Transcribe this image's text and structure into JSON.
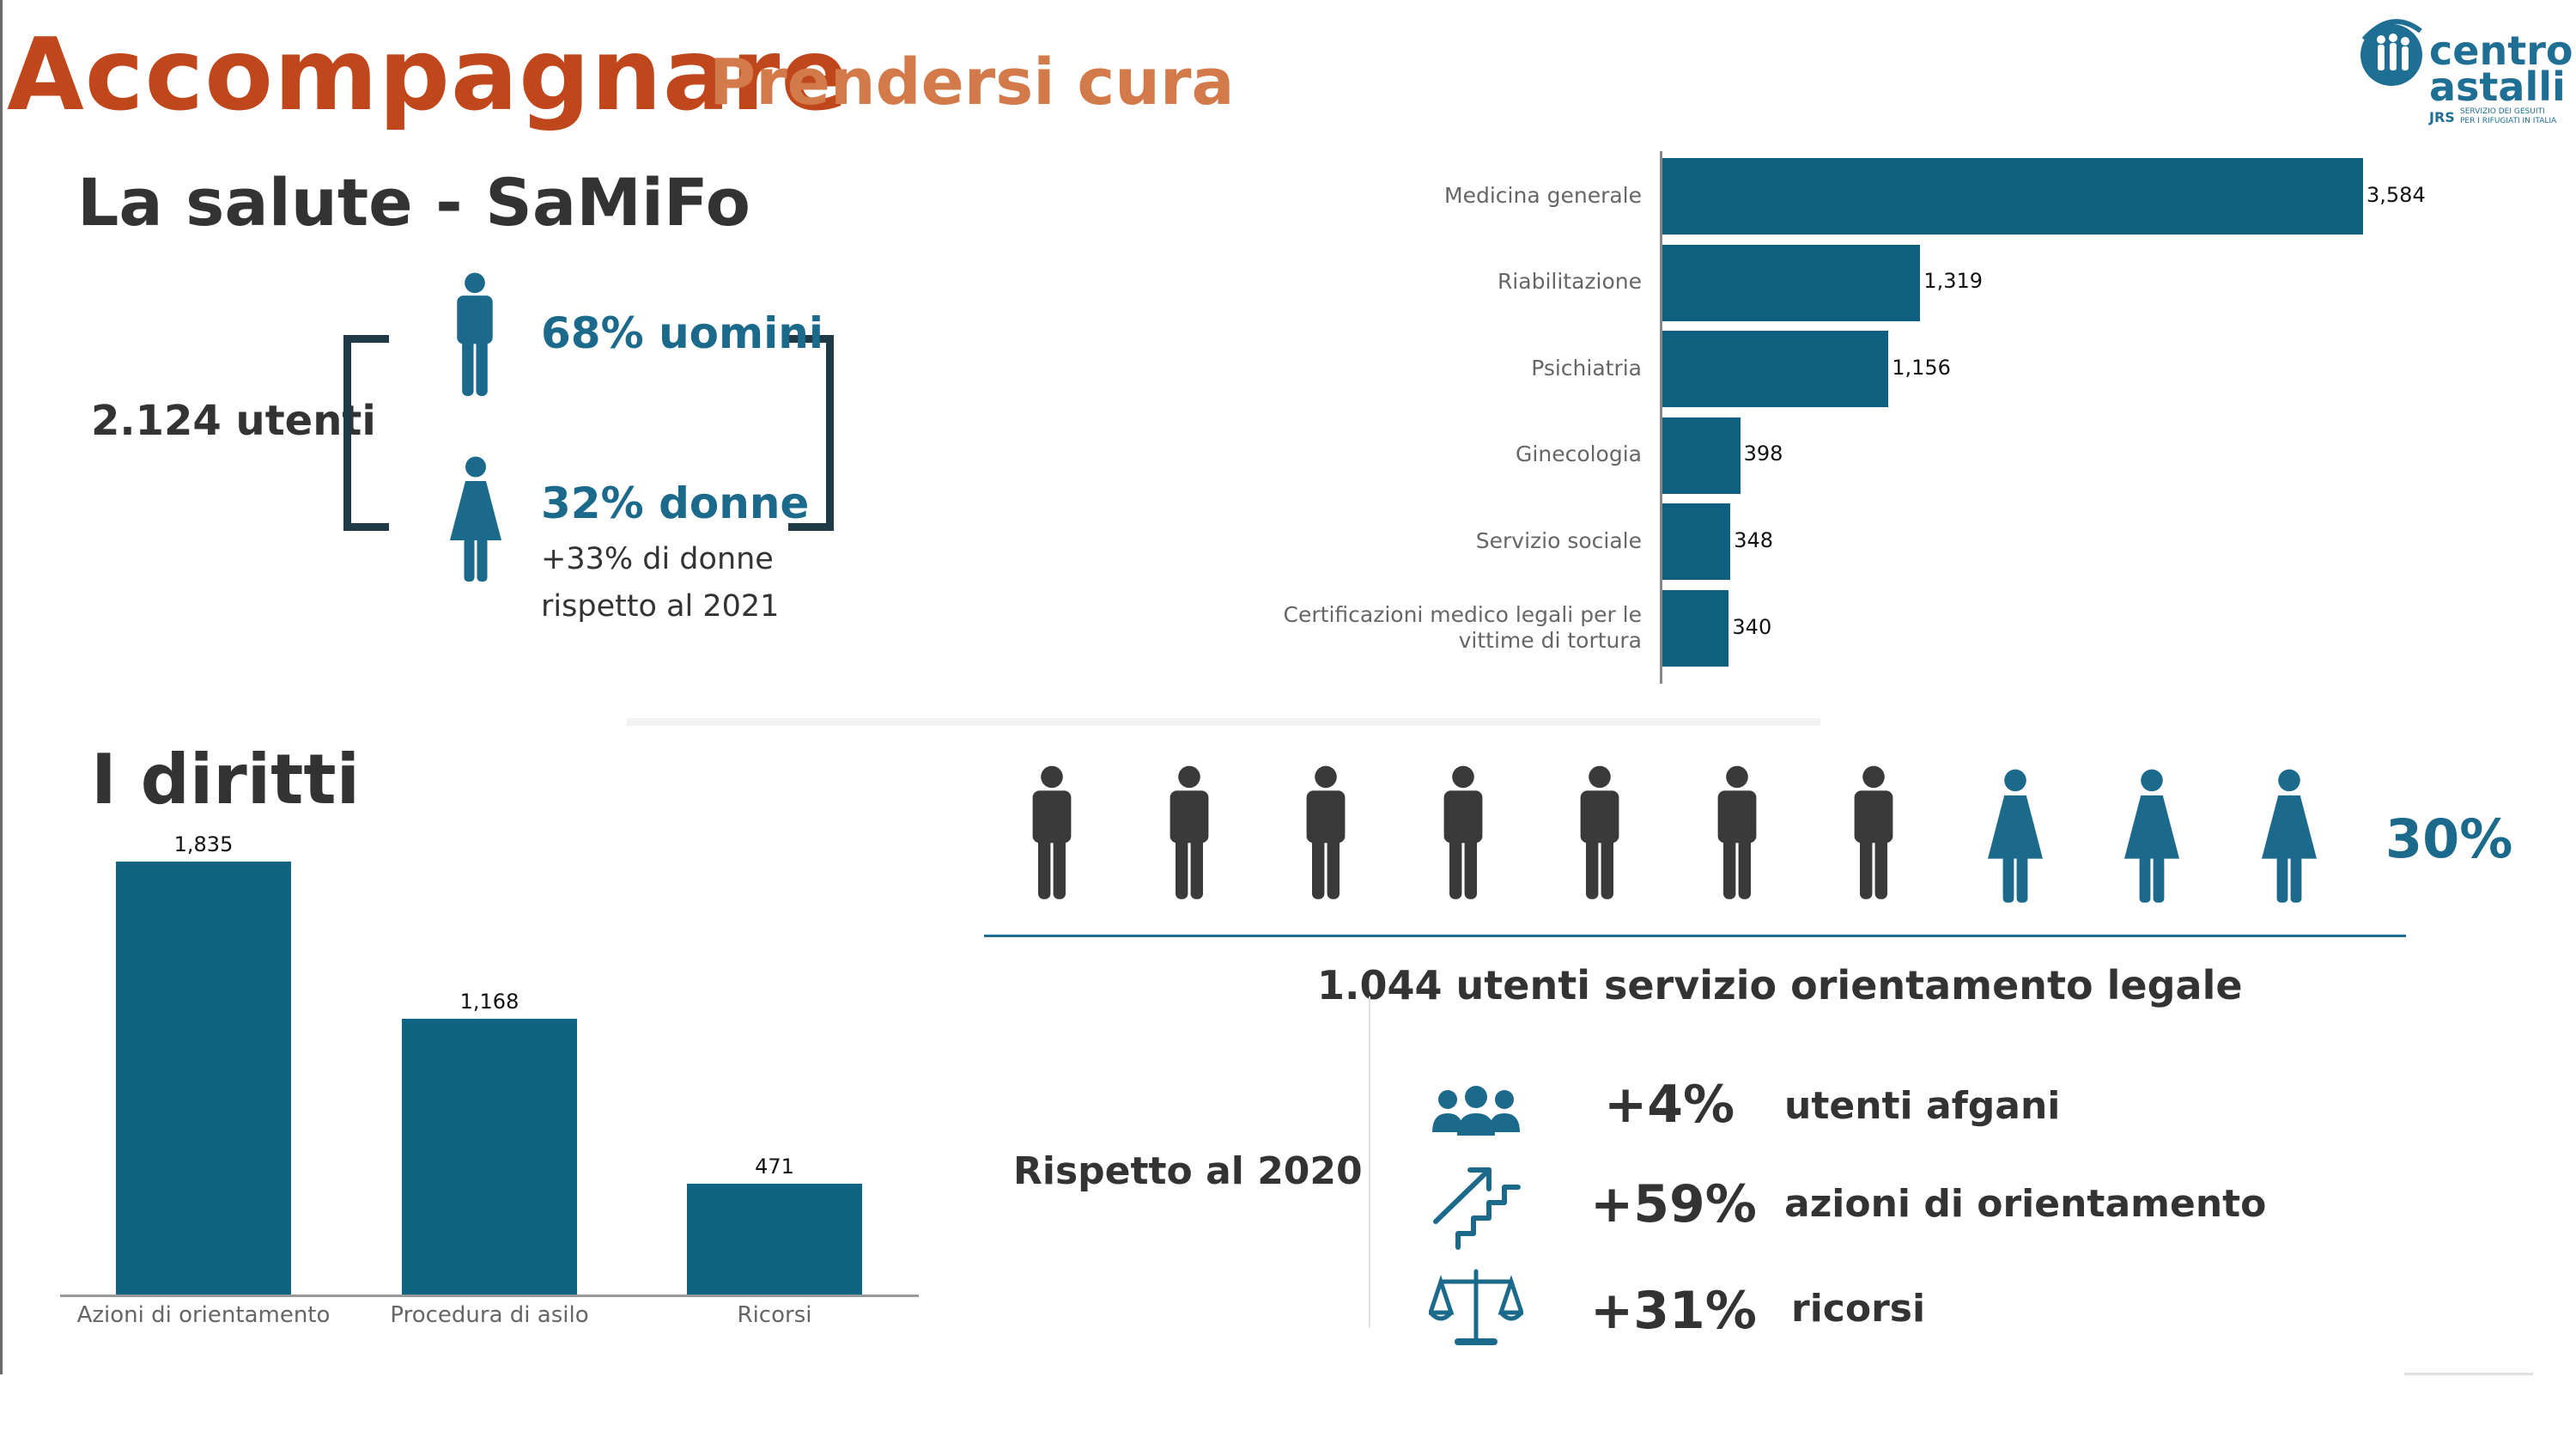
{
  "header": {
    "title": "Accompagnare",
    "subtitle": "Prendersi cura"
  },
  "logo": {
    "line1": "centro",
    "line2": "astalli",
    "jrs": "JRS",
    "tagline1": "SERVIZIO DEI GESUITI",
    "tagline2": "PER I RIFUGIATI IN ITALIA"
  },
  "health": {
    "title": "La salute - SaMiFo",
    "users_total": "2.124 utenti",
    "men_text": "68% uomini",
    "women_text": "32% donne",
    "women_note_line1": "+33% di donne",
    "women_note_line2": "rispetto al 2021"
  },
  "rights": {
    "title": "I diritti"
  },
  "legal": {
    "percent_label": "30%",
    "figures_total": 10,
    "figures_women": 3,
    "title": "1.044 utenti servizio orientamento legale",
    "compare_label": "Rispetto al 2020",
    "stats": [
      {
        "icon": "people-group-icon",
        "value": "+4%",
        "label": "utenti afgani"
      },
      {
        "icon": "stairs-arrow-icon",
        "value": "+59%",
        "label": "azioni di orientamento"
      },
      {
        "icon": "scales-icon",
        "value": "+31%",
        "label": "ricorsi"
      }
    ]
  },
  "colors": {
    "title": "#c0461b",
    "subtitle": "#d37a4a",
    "accent": "#0f5f7e",
    "male_figure": "#3a3a3a"
  },
  "chart_data": [
    {
      "type": "bar",
      "orientation": "horizontal",
      "categories": [
        "Medicina generale",
        "Riabilitazione",
        "Psichiatria",
        "Ginecologia",
        "Servizio sociale",
        "Certificazioni medico legali per le vittime di tortura"
      ],
      "values": [
        3584,
        1319,
        1156,
        398,
        348,
        340
      ],
      "value_labels": [
        "3,584",
        "1,319",
        "1,156",
        "398",
        "348",
        "340"
      ],
      "title": "",
      "xlabel": "",
      "ylabel": "",
      "xlim": [
        0,
        3584
      ]
    },
    {
      "type": "bar",
      "orientation": "vertical",
      "categories": [
        "Azioni di orientamento",
        "Procedura di asilo",
        "Ricorsi"
      ],
      "values": [
        1835,
        1168,
        471
      ],
      "value_labels": [
        "1,835",
        "1,168",
        "471"
      ],
      "title": "",
      "xlabel": "",
      "ylabel": "",
      "ylim": [
        0,
        1835
      ]
    }
  ]
}
